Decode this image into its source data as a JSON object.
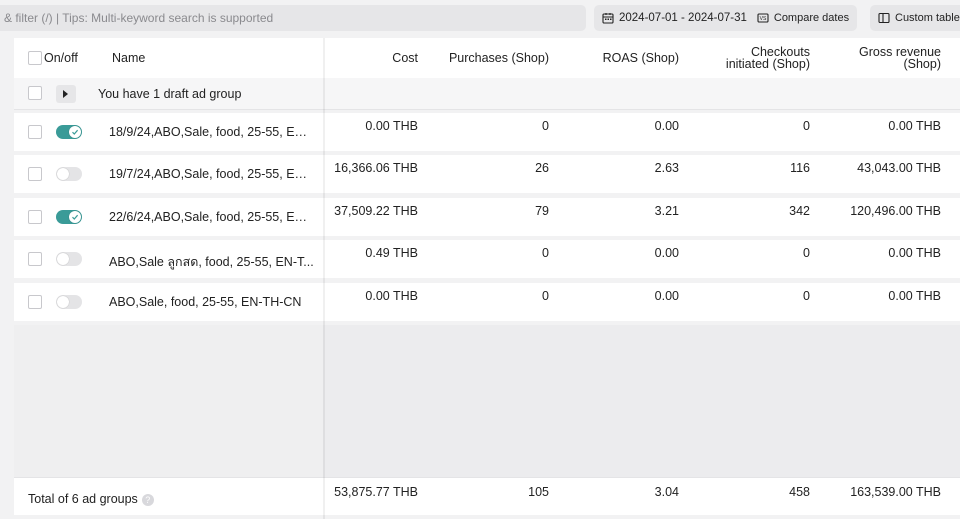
{
  "toolbar": {
    "search_placeholder": "& filter (/) | Tips: Multi-keyword search is supported",
    "date_range": "2024-07-01 - 2024-07-31",
    "compare_label": "Compare dates",
    "custom_label": "Custom table"
  },
  "columns": {
    "onoff": "On/off",
    "name": "Name",
    "cost": "Cost",
    "purchases": "Purchases (Shop)",
    "roas": "ROAS (Shop)",
    "checkouts_line1": "Checkouts",
    "checkouts_line2": "initiated (Shop)",
    "gross_line1": "Gross revenue",
    "gross_line2": "(Shop)"
  },
  "draft": {
    "text": "You have 1 draft ad group"
  },
  "rows": [
    {
      "on": true,
      "name": "18/9/24,ABO,Sale, food, 25-55, EN-...",
      "cost": "0.00 THB",
      "purchases": "0",
      "roas": "0.00",
      "checkouts": "0",
      "gross": "0.00 THB"
    },
    {
      "on": false,
      "name": "19/7/24,ABO,Sale, food, 25-55, EN-...",
      "cost": "16,366.06 THB",
      "purchases": "26",
      "roas": "2.63",
      "checkouts": "116",
      "gross": "43,043.00 THB"
    },
    {
      "on": true,
      "name": "22/6/24,ABO,Sale, food, 25-55, EN-...",
      "cost": "37,509.22 THB",
      "purchases": "79",
      "roas": "3.21",
      "checkouts": "342",
      "gross": "120,496.00 THB"
    },
    {
      "on": false,
      "name": "ABO,Sale ลูกสด, food, 25-55, EN-T...",
      "cost": "0.49 THB",
      "purchases": "0",
      "roas": "0.00",
      "checkouts": "0",
      "gross": "0.00 THB"
    },
    {
      "on": false,
      "name": "ABO,Sale, food, 25-55, EN-TH-CN",
      "cost": "0.00 THB",
      "purchases": "0",
      "roas": "0.00",
      "checkouts": "0",
      "gross": "0.00 THB"
    }
  ],
  "footer": {
    "label": "Total of 6 ad groups",
    "help": "?",
    "cost": "53,875.77 THB",
    "purchases": "105",
    "roas": "3.04",
    "checkouts": "458",
    "gross": "163,539.00 THB"
  },
  "colors": {
    "toggle_on": "#3a9b98",
    "toggle_off": "#e4e4e6"
  },
  "icons": {
    "date": "calendar-icon",
    "compare": "compare-icon",
    "custom": "columns-icon",
    "expand": "caret-right-icon",
    "toggle_check": "check-icon"
  }
}
